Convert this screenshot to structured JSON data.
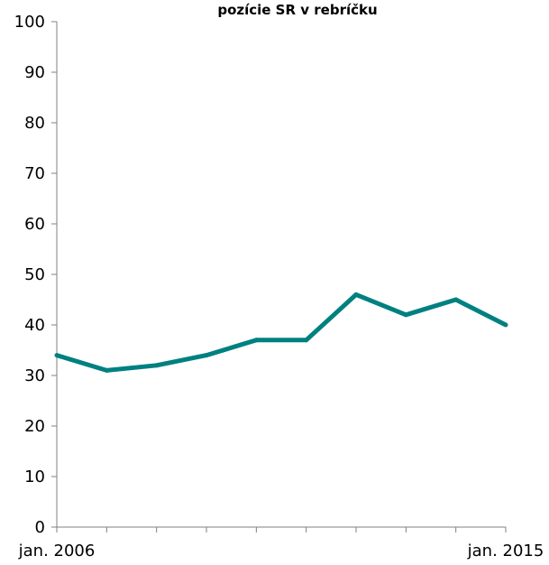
{
  "chart_data": {
    "type": "line",
    "title": "pozície SR v rebríčku",
    "xlabel": "",
    "ylabel": "",
    "x": [
      "jan. 2006",
      "",
      "",
      "",
      "",
      "",
      "",
      "",
      "",
      "jan. 2015"
    ],
    "x_tick_labels_shown": [
      "jan. 2006",
      "jan. 2015"
    ],
    "y_ticks": [
      "0",
      "10",
      "20",
      "30",
      "40",
      "50",
      "60",
      "70",
      "80",
      "90",
      "100"
    ],
    "ylim": [
      0,
      100
    ],
    "series": [
      {
        "values": [
          34,
          31,
          32,
          34,
          37,
          37,
          46,
          42,
          45,
          40
        ],
        "color": "#008080"
      }
    ],
    "grid": false,
    "legend": "none"
  }
}
